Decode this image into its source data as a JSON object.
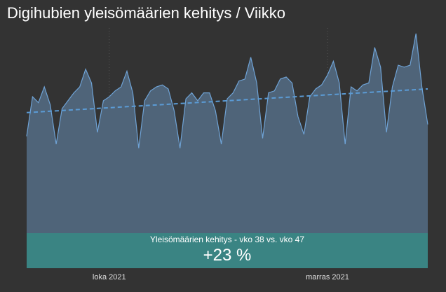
{
  "header": {
    "title": "Digihubien yleisömäärien kehitys / Viikko"
  },
  "banner": {
    "label": "Yleisömäärien kehitys - vko 38 vs. vko 47",
    "value": "+23 %"
  },
  "colors": {
    "background": "#333333",
    "area_fill": "#4f6479",
    "line": "#6fa3d6",
    "trend": "#5b9bd5",
    "banner": "#3a8483",
    "grid": "#555555"
  },
  "chart_data": {
    "type": "area",
    "title": "Digihubien yleisömäärien kehitys / Viikko",
    "xlabel": "",
    "ylabel": "",
    "ylim": [
      0,
      100
    ],
    "x_tick_labels": [
      "loka 2021",
      "marras 2021"
    ],
    "x_tick_positions": [
      14,
      51
    ],
    "grid": "vertical dotted at month starts",
    "trendline": {
      "type": "linear",
      "style": "dashed",
      "start": 60,
      "end": 72
    },
    "series": [
      {
        "values": [
          48,
          68,
          65,
          73,
          64,
          44,
          62,
          66,
          70,
          73,
          82,
          75,
          50,
          66,
          68,
          71,
          73,
          81,
          70,
          42,
          66,
          71,
          73,
          74,
          72,
          61,
          42,
          67,
          70,
          66,
          70,
          70,
          61,
          44,
          67,
          70,
          76,
          77,
          88,
          75,
          47,
          70,
          71,
          77,
          78,
          75,
          58,
          49,
          68,
          72,
          74,
          79,
          86,
          75,
          44,
          73,
          71,
          74,
          75,
          93,
          83,
          50,
          73,
          84,
          83,
          84,
          100,
          73,
          54
        ]
      }
    ]
  }
}
